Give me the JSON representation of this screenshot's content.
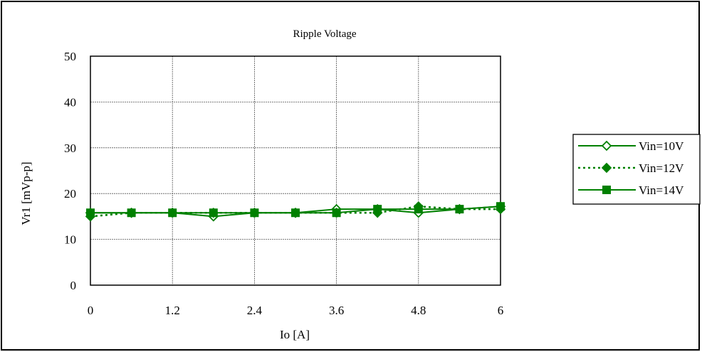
{
  "chart_data": {
    "type": "line",
    "title": "Ripple Voltage",
    "xlabel": "Io [A]",
    "ylabel": "Vr1 [mVp-p]",
    "xlim": [
      0,
      6
    ],
    "ylim": [
      0,
      50
    ],
    "xticks": [
      "0",
      "1.2",
      "2.4",
      "3.6",
      "4.8",
      "6"
    ],
    "yticks": [
      "0",
      "10",
      "20",
      "30",
      "40",
      "50"
    ],
    "grid": true,
    "legend_position": "right",
    "series": [
      {
        "name": "Vin=10V",
        "marker": "diamond-open",
        "line": "solid",
        "color": "#008000",
        "x": [
          0,
          0.6,
          1.2,
          1.8,
          2.4,
          3.0,
          3.6,
          4.2,
          4.8,
          5.4,
          6.0
        ],
        "y": [
          15.8,
          15.8,
          15.8,
          15.0,
          15.8,
          15.8,
          16.6,
          16.6,
          15.8,
          16.6,
          17.2
        ]
      },
      {
        "name": "Vin=12V",
        "marker": "diamond-filled",
        "line": "dotted",
        "color": "#008000",
        "x": [
          0,
          0.6,
          1.2,
          1.8,
          2.4,
          3.0,
          3.6,
          4.2,
          4.8,
          5.4,
          6.0
        ],
        "y": [
          15.0,
          15.8,
          15.8,
          15.8,
          15.8,
          15.8,
          15.8,
          15.8,
          17.2,
          16.6,
          16.6
        ]
      },
      {
        "name": "Vin=14V",
        "marker": "square-filled",
        "line": "solid",
        "color": "#008000",
        "x": [
          0,
          0.6,
          1.2,
          1.8,
          2.4,
          3.0,
          3.6,
          4.2,
          4.8,
          5.4,
          6.0
        ],
        "y": [
          15.8,
          15.8,
          15.8,
          15.8,
          15.8,
          15.8,
          15.8,
          16.6,
          16.6,
          16.6,
          17.2
        ]
      }
    ]
  }
}
